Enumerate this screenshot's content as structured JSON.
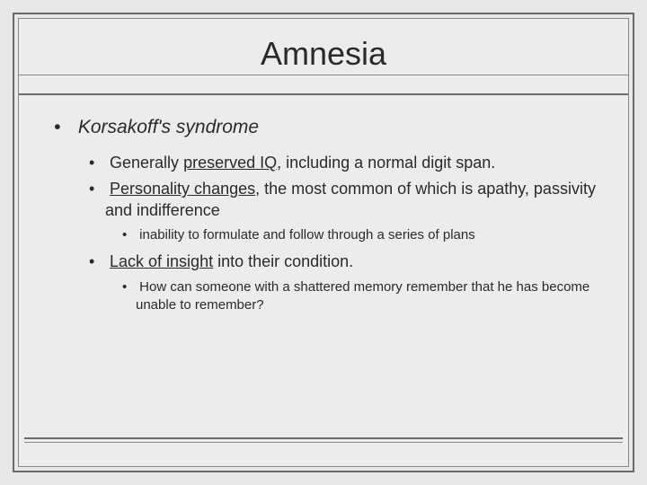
{
  "slide": {
    "title": "Amnesia",
    "background_color": "#e8e8e6",
    "border_color_outer": "#6b6b6b",
    "border_color_inner": "#888888",
    "text_color": "#2a2a2a",
    "title_fontsize": 36,
    "fonts": {
      "family": "Arial",
      "lvl1_size": 21,
      "lvl2_size": 18,
      "lvl3_size": 15
    },
    "bullets": {
      "lvl1": "Korsakoff's syndrome",
      "lvl2a_pre": "Generally ",
      "lvl2a_u": "preserved IQ",
      "lvl2a_post": ", including a normal digit span.",
      "lvl2b_u": "Personality changes",
      "lvl2b_post": ", the most common of which is apathy, passivity and indifference",
      "lvl3a": "inability to formulate and follow through a series of plans",
      "lvl2c_u": "Lack of insight",
      "lvl2c_post": " into their condition.",
      "lvl3b": "How can someone with a shattered memory remember that he has become unable to remember?"
    }
  }
}
